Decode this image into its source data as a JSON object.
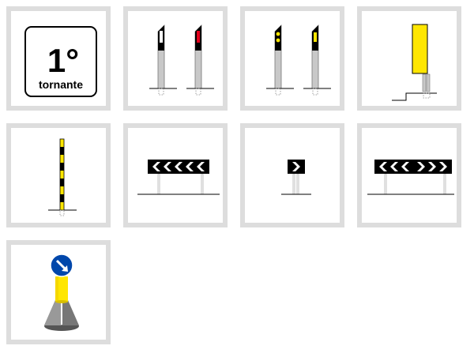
{
  "hairpin_sign": {
    "number": "1°",
    "word": "tornante"
  },
  "colors": {
    "tile_border": "#dddddd",
    "yellow": "#ffe600",
    "red": "#e3001b",
    "blue": "#0047ab",
    "black": "#000000",
    "grey": "#c8c8c8"
  },
  "tiles": [
    {
      "id": "hairpin-sign-1st-bend",
      "icon": "hairpin-sign-icon"
    },
    {
      "id": "delineator-posts-white-red",
      "icon": "delineator-posts-icon"
    },
    {
      "id": "delineator-posts-yellow",
      "icon": "yellow-delineator-posts-icon"
    },
    {
      "id": "yellow-panel-marker",
      "icon": "yellow-panel-icon"
    },
    {
      "id": "black-yellow-striped-pole",
      "icon": "striped-pole-icon"
    },
    {
      "id": "chevron-board-left",
      "icon": "chevron-left-icon"
    },
    {
      "id": "single-chevron-right",
      "icon": "chevron-right-icon"
    },
    {
      "id": "chevron-board-double",
      "icon": "chevron-double-icon"
    },
    {
      "id": "keep-right-bollard",
      "icon": "keep-right-bollard-icon"
    }
  ]
}
